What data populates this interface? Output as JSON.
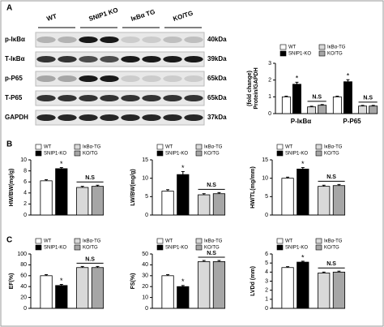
{
  "panel_labels": [
    "A",
    "B",
    "C"
  ],
  "blot": {
    "columns": [
      "WT",
      "SNIP1 KO",
      "IκBα TG",
      "KO/TG"
    ],
    "rows": [
      {
        "label": "p-IκBα",
        "size": "40kDa"
      },
      {
        "label": "T-IκBα",
        "size": "39kDa"
      },
      {
        "label": "p-P65",
        "size": "65kDa"
      },
      {
        "label": "T-P65",
        "size": "65kDa"
      },
      {
        "label": "GAPDH",
        "size": "37kDa"
      }
    ]
  },
  "chart_data": [
    {
      "type": "bar",
      "ylabel": [
        "Protein/GAPDH",
        "(fold change)"
      ],
      "categories": [
        "P-IκBα",
        "P-P65"
      ],
      "series": [
        {
          "name": "WT",
          "color": "#ffffff",
          "values": [
            1.0,
            1.0
          ],
          "errors": [
            0.04,
            0.04
          ]
        },
        {
          "name": "SNIP1-KO",
          "color": "#000000",
          "values": [
            1.75,
            1.9
          ],
          "errors": [
            0.12,
            0.12
          ]
        },
        {
          "name": "IκBα-TG",
          "color": "#d9d9d9",
          "values": [
            0.4,
            0.45
          ],
          "errors": [
            0.04,
            0.04
          ]
        },
        {
          "name": "KO/TG",
          "color": "#a6a6a6",
          "values": [
            0.5,
            0.45
          ],
          "errors": [
            0.04,
            0.04
          ]
        }
      ],
      "ylim": [
        0,
        3
      ],
      "yticks": [
        0,
        1,
        2,
        3
      ],
      "significance": "*",
      "ns_label": "N.S"
    },
    {
      "type": "bar",
      "ylabel": [
        "HW/BW(mg/g)"
      ],
      "categories": [
        null
      ],
      "series": [
        {
          "name": "WT",
          "color": "#ffffff",
          "values": [
            6.2
          ],
          "errors": [
            0.2
          ]
        },
        {
          "name": "SNIP1-KO",
          "color": "#000000",
          "values": [
            8.4
          ],
          "errors": [
            0.2
          ]
        },
        {
          "name": "IκBα-TG",
          "color": "#d9d9d9",
          "values": [
            5.0
          ],
          "errors": [
            0.2
          ]
        },
        {
          "name": "KO/TG",
          "color": "#a6a6a6",
          "values": [
            5.2
          ],
          "errors": [
            0.2
          ]
        }
      ],
      "ylim": [
        0,
        10
      ],
      "yticks": [
        0,
        2,
        4,
        6,
        8,
        10
      ],
      "significance": "*",
      "ns_label": "N.S"
    },
    {
      "type": "bar",
      "ylabel": [
        "LW/BW(mg/g)"
      ],
      "categories": [
        null
      ],
      "series": [
        {
          "name": "WT",
          "color": "#ffffff",
          "values": [
            6.5
          ],
          "errors": [
            0.4
          ]
        },
        {
          "name": "SNIP1-KO",
          "color": "#000000",
          "values": [
            11
          ],
          "errors": [
            0.8
          ]
        },
        {
          "name": "IκBα-TG",
          "color": "#d9d9d9",
          "values": [
            5.5
          ],
          "errors": [
            0.3
          ]
        },
        {
          "name": "KO/TG",
          "color": "#a6a6a6",
          "values": [
            5.8
          ],
          "errors": [
            0.3
          ]
        }
      ],
      "ylim": [
        0,
        15
      ],
      "yticks": [
        0,
        5,
        10,
        15
      ],
      "significance": "*",
      "ns_label": "N.S"
    },
    {
      "type": "bar",
      "ylabel": [
        "HW/TL(mg/mm)"
      ],
      "categories": [
        null
      ],
      "series": [
        {
          "name": "WT",
          "color": "#ffffff",
          "values": [
            10
          ],
          "errors": [
            0.3
          ]
        },
        {
          "name": "SNIP1-KO",
          "color": "#000000",
          "values": [
            12.5
          ],
          "errors": [
            0.4
          ]
        },
        {
          "name": "IκBα-TG",
          "color": "#d9d9d9",
          "values": [
            7.8
          ],
          "errors": [
            0.3
          ]
        },
        {
          "name": "KO/TG",
          "color": "#a6a6a6",
          "values": [
            8
          ],
          "errors": [
            0.3
          ]
        }
      ],
      "ylim": [
        0,
        15
      ],
      "yticks": [
        0,
        5,
        10,
        15
      ],
      "significance": "*",
      "ns_label": "N.S"
    },
    {
      "type": "bar",
      "ylabel": [
        "EF(%)"
      ],
      "categories": [
        null
      ],
      "series": [
        {
          "name": "WT",
          "color": "#ffffff",
          "values": [
            60
          ],
          "errors": [
            2
          ]
        },
        {
          "name": "SNIP1-KO",
          "color": "#000000",
          "values": [
            42
          ],
          "errors": [
            2
          ]
        },
        {
          "name": "IκBα-TG",
          "color": "#d9d9d9",
          "values": [
            75
          ],
          "errors": [
            2
          ]
        },
        {
          "name": "KO/TG",
          "color": "#a6a6a6",
          "values": [
            75
          ],
          "errors": [
            2
          ]
        }
      ],
      "ylim": [
        0,
        100
      ],
      "yticks": [
        0,
        20,
        40,
        60,
        80,
        100
      ],
      "significance": "*",
      "ns_label": "N.S"
    },
    {
      "type": "bar",
      "ylabel": [
        "FS(%)"
      ],
      "categories": [
        null
      ],
      "series": [
        {
          "name": "WT",
          "color": "#ffffff",
          "values": [
            30
          ],
          "errors": [
            1
          ]
        },
        {
          "name": "SNIP1-KO",
          "color": "#000000",
          "values": [
            20
          ],
          "errors": [
            1
          ]
        },
        {
          "name": "IκBα-TG",
          "color": "#d9d9d9",
          "values": [
            43
          ],
          "errors": [
            1
          ]
        },
        {
          "name": "KO/TG",
          "color": "#a6a6a6",
          "values": [
            43
          ],
          "errors": [
            1
          ]
        }
      ],
      "ylim": [
        0,
        50
      ],
      "yticks": [
        0,
        10,
        20,
        30,
        40,
        50
      ],
      "significance": "*",
      "ns_label": "N.S"
    },
    {
      "type": "bar",
      "ylabel": [
        "LVDd  (mm)"
      ],
      "categories": [
        null
      ],
      "series": [
        {
          "name": "WT",
          "color": "#ffffff",
          "values": [
            4.5
          ],
          "errors": [
            0.1
          ]
        },
        {
          "name": "SNIP1-KO",
          "color": "#000000",
          "values": [
            5.1
          ],
          "errors": [
            0.1
          ]
        },
        {
          "name": "IκBα-TG",
          "color": "#d9d9d9",
          "values": [
            3.9
          ],
          "errors": [
            0.1
          ]
        },
        {
          "name": "KO/TG",
          "color": "#a6a6a6",
          "values": [
            4.0
          ],
          "errors": [
            0.1
          ]
        }
      ],
      "ylim": [
        0,
        6
      ],
      "yticks": [
        0,
        1,
        2,
        3,
        4,
        5,
        6
      ],
      "significance": "*",
      "ns_label": "N.S"
    }
  ]
}
